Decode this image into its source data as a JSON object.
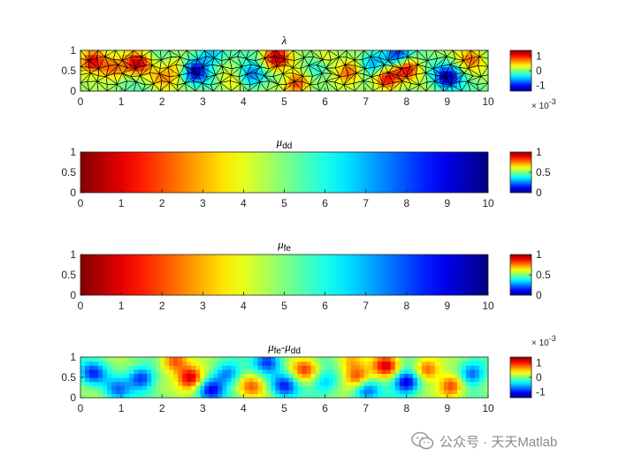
{
  "watermark": {
    "text": "公众号 · 天天Matlab",
    "icon": "wechat-icon"
  },
  "chart_data": [
    {
      "type": "heatmap",
      "title": "λ",
      "mesh": "triangular",
      "x_ticks": [
        0,
        1,
        2,
        3,
        4,
        5,
        6,
        7,
        8,
        9,
        10
      ],
      "y_ticks": [
        0,
        0.5,
        1
      ],
      "xlim": [
        0,
        10
      ],
      "ylim": [
        0,
        1
      ],
      "colorbar": {
        "colormap": "jet",
        "ticks": [
          -1,
          0,
          1
        ],
        "range": [
          -1.4,
          1.4
        ],
        "exponent_label": "× 10",
        "exponent": "-3"
      },
      "hotspots": [
        {
          "x": 0.3,
          "y": 0.75,
          "v": 1.2
        },
        {
          "x": 0.8,
          "y": 0.55,
          "v": 0.8
        },
        {
          "x": 1.4,
          "y": 0.7,
          "v": 1.1
        },
        {
          "x": 2.0,
          "y": 0.3,
          "v": 0.5
        },
        {
          "x": 2.4,
          "y": 0.6,
          "v": 0.6
        },
        {
          "x": 2.8,
          "y": 0.5,
          "v": -1.2
        },
        {
          "x": 3.2,
          "y": 0.9,
          "v": -0.6
        },
        {
          "x": 4.2,
          "y": 0.4,
          "v": -0.8
        },
        {
          "x": 4.8,
          "y": 0.8,
          "v": 1.3
        },
        {
          "x": 5.3,
          "y": 0.2,
          "v": 1.0
        },
        {
          "x": 5.8,
          "y": 0.6,
          "v": -0.5
        },
        {
          "x": 6.6,
          "y": 0.5,
          "v": 0.9
        },
        {
          "x": 7.2,
          "y": 0.7,
          "v": -0.7
        },
        {
          "x": 7.5,
          "y": 0.3,
          "v": 1.1
        },
        {
          "x": 8.0,
          "y": 0.6,
          "v": 1.2
        },
        {
          "x": 7.8,
          "y": 0.85,
          "v": -1.1
        },
        {
          "x": 9.0,
          "y": 0.35,
          "v": -1.2
        },
        {
          "x": 9.6,
          "y": 0.8,
          "v": 0.7
        },
        {
          "x": 6.0,
          "y": 0.85,
          "v": 0.5
        },
        {
          "x": 3.7,
          "y": 0.2,
          "v": 0.4
        }
      ]
    },
    {
      "type": "heatmap",
      "title": "μ",
      "title_sub": "dd",
      "gradient": "x",
      "value_at_x0": 1,
      "value_at_x10": 0,
      "x_ticks": [
        0,
        1,
        2,
        3,
        4,
        5,
        6,
        7,
        8,
        9,
        10
      ],
      "y_ticks": [
        0,
        0.5,
        1
      ],
      "xlim": [
        0,
        10
      ],
      "ylim": [
        0,
        1
      ],
      "colorbar": {
        "colormap": "jet",
        "ticks": [
          0,
          0.5,
          1
        ],
        "range": [
          0,
          1
        ]
      }
    },
    {
      "type": "heatmap",
      "title": "μ",
      "title_sub": "fe",
      "gradient": "x",
      "value_at_x0": 1,
      "value_at_x10": 0,
      "x_ticks": [
        0,
        1,
        2,
        3,
        4,
        5,
        6,
        7,
        8,
        9,
        10
      ],
      "y_ticks": [
        0,
        0.5,
        1
      ],
      "xlim": [
        0,
        10
      ],
      "ylim": [
        0,
        1
      ],
      "colorbar": {
        "colormap": "jet",
        "ticks": [
          0,
          0.5,
          1
        ],
        "range": [
          0,
          1
        ]
      }
    },
    {
      "type": "heatmap",
      "title": "μ",
      "title_sub": "fe",
      "title_mid": "-μ",
      "title_sub2": "dd",
      "x_ticks": [
        0,
        1,
        2,
        3,
        4,
        5,
        6,
        7,
        8,
        9,
        10
      ],
      "y_ticks": [
        0,
        0.5,
        1
      ],
      "xlim": [
        0,
        10
      ],
      "ylim": [
        0,
        1
      ],
      "colorbar": {
        "colormap": "jet",
        "ticks": [
          -1,
          0,
          1
        ],
        "range": [
          -1.4,
          1.4
        ],
        "exponent_label": "× 10",
        "exponent": "-3"
      },
      "hotspots": [
        {
          "x": 0.3,
          "y": 0.6,
          "v": -0.9
        },
        {
          "x": 0.9,
          "y": 0.2,
          "v": -0.7
        },
        {
          "x": 1.5,
          "y": 0.5,
          "v": -1.0
        },
        {
          "x": 2.3,
          "y": 0.9,
          "v": 0.9
        },
        {
          "x": 2.7,
          "y": 0.5,
          "v": 1.3
        },
        {
          "x": 3.2,
          "y": 0.2,
          "v": -1.0
        },
        {
          "x": 3.6,
          "y": 0.6,
          "v": -0.8
        },
        {
          "x": 4.2,
          "y": 0.3,
          "v": 0.7
        },
        {
          "x": 4.6,
          "y": 0.9,
          "v": -0.9
        },
        {
          "x": 5.0,
          "y": 0.3,
          "v": -0.9
        },
        {
          "x": 5.5,
          "y": 0.7,
          "v": 0.8
        },
        {
          "x": 6.0,
          "y": 0.4,
          "v": -0.6
        },
        {
          "x": 6.6,
          "y": 0.9,
          "v": 0.5
        },
        {
          "x": 7.0,
          "y": 0.2,
          "v": -0.8
        },
        {
          "x": 7.5,
          "y": 0.8,
          "v": 1.1
        },
        {
          "x": 8.0,
          "y": 0.4,
          "v": -1.3
        },
        {
          "x": 8.5,
          "y": 0.7,
          "v": 0.9
        },
        {
          "x": 9.1,
          "y": 0.3,
          "v": 1.0
        },
        {
          "x": 9.6,
          "y": 0.6,
          "v": -0.9
        },
        {
          "x": 6.8,
          "y": 0.5,
          "v": 1.0
        }
      ]
    }
  ]
}
